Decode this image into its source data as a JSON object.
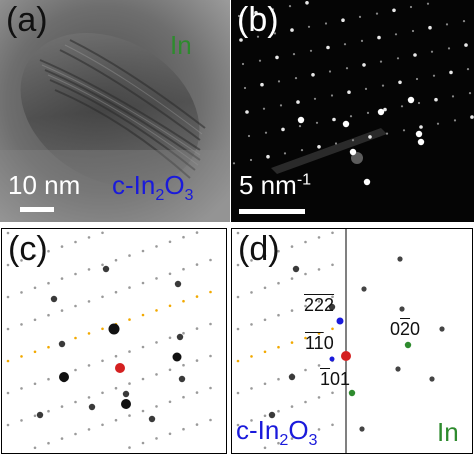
{
  "panels": {
    "a": {
      "label": "(a)",
      "in_label": "In",
      "scalebar": "10 nm",
      "phase_prefix": "c-In",
      "phase_sub1": "2",
      "phase_mid": "O",
      "phase_sub2": "3"
    },
    "b": {
      "label": "(b)",
      "scalebar": "5 nm",
      "scalebar_sup": "-1"
    },
    "c": {
      "label": "(c)"
    },
    "d": {
      "label": "(d)",
      "phase_prefix": "c-In",
      "phase_sub1": "2",
      "phase_mid": "O",
      "phase_sub2": "3",
      "in_label": "In",
      "indices": {
        "i222": {
          "bar": "222",
          "plain": ""
        },
        "i110_bar": "11",
        "i110_plain": "0",
        "i020_a": "0",
        "i020_bar": "2",
        "i020_b": "0",
        "i101_bar": "1",
        "i101_plain": "01"
      }
    }
  },
  "colors": {
    "in2o3_blue": "#1a1adb",
    "in_green": "#2e8b2e",
    "origin_red": "#d42020",
    "highlight_orange": "#f2a900",
    "frame": "#000000"
  }
}
